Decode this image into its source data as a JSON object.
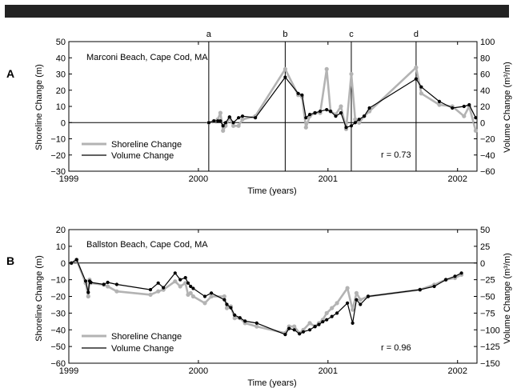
{
  "chart_data": [
    {
      "panel": "A",
      "type": "line",
      "annotation": "Marconi Beach, Cape Cod, MA",
      "xlabel": "Time (years)",
      "ylabel": "Shoreline Change (m)",
      "y2label": "Volume Change (m³/m)",
      "xlim": [
        1999,
        2002.15
      ],
      "ylim": [
        -30,
        50
      ],
      "y2lim": [
        -60,
        100
      ],
      "xticks": [
        "1999",
        "2000",
        "2001",
        "2002"
      ],
      "yticks": [
        "50",
        "40",
        "30",
        "20",
        "10",
        "0",
        "−10",
        "−20",
        "−30"
      ],
      "y2ticks": [
        "100",
        "80",
        "60",
        "40",
        "20",
        "0",
        "−20",
        "−40",
        "−60"
      ],
      "r_text": "r = 0.73",
      "event_lines": [
        {
          "label": "a",
          "x": 2000.08
        },
        {
          "label": "b",
          "x": 2000.67
        },
        {
          "label": "c",
          "x": 2001.18
        },
        {
          "label": "d",
          "x": 2001.68
        }
      ],
      "legend": {
        "placement": "bottom-left",
        "entries": [
          "Shoreline Change",
          "Volume Change"
        ]
      },
      "colors": {
        "shoreline": "#b3b3b3",
        "volume": "#000000"
      },
      "series": [
        {
          "name": "Shoreline Change",
          "axis": "left",
          "x": [
            2000.08,
            2000.12,
            2000.15,
            2000.17,
            2000.19,
            2000.21,
            2000.24,
            2000.27,
            2000.31,
            2000.34,
            2000.44,
            2000.67,
            2000.77,
            2000.8,
            2000.83,
            2000.86,
            2000.9,
            2000.94,
            2000.99,
            2001.02,
            2001.06,
            2001.1,
            2001.14,
            2001.18,
            2001.21,
            2001.24,
            2001.28,
            2001.32,
            2001.68,
            2001.72,
            2001.86,
            2001.96,
            2002.05,
            2002.09,
            2002.14
          ],
          "y": [
            0,
            1,
            2,
            6,
            -5,
            -2,
            3,
            -2,
            -2,
            2,
            4,
            33,
            17,
            16,
            -3,
            4,
            6,
            6,
            33,
            7,
            5,
            10,
            -4,
            30,
            2,
            0,
            4,
            7,
            34,
            18,
            11,
            10,
            4,
            10,
            -5
          ]
        },
        {
          "name": "Volume Change",
          "axis": "right",
          "x": [
            2000.08,
            2000.12,
            2000.15,
            2000.17,
            2000.19,
            2000.21,
            2000.24,
            2000.27,
            2000.31,
            2000.34,
            2000.44,
            2000.67,
            2000.77,
            2000.8,
            2000.83,
            2000.86,
            2000.9,
            2000.94,
            2000.99,
            2001.02,
            2001.06,
            2001.1,
            2001.14,
            2001.18,
            2001.21,
            2001.24,
            2001.28,
            2001.32,
            2001.68,
            2001.72,
            2001.86,
            2001.96,
            2002.05,
            2002.09,
            2002.14
          ],
          "y": [
            0,
            2,
            2,
            2,
            -4,
            0,
            7,
            0,
            6,
            8,
            6,
            56,
            36,
            34,
            6,
            10,
            12,
            14,
            16,
            14,
            8,
            12,
            -6,
            -4,
            0,
            4,
            8,
            18,
            54,
            44,
            26,
            18,
            20,
            22,
            6
          ]
        }
      ]
    },
    {
      "panel": "B",
      "type": "line",
      "annotation": "Ballston Beach, Cape Cod, MA",
      "xlabel": "Time (years)",
      "ylabel": "Shoreline Change (m)",
      "y2label": "Volume Change (m³/m)",
      "xlim": [
        1999,
        2002.15
      ],
      "ylim": [
        -60,
        20
      ],
      "y2lim": [
        -150,
        50
      ],
      "xticks": [
        "1999",
        "2000",
        "2001",
        "2002"
      ],
      "yticks": [
        "20",
        "10",
        "0",
        "−10",
        "−20",
        "−30",
        "−40",
        "−50",
        "−60"
      ],
      "y2ticks": [
        "50",
        "25",
        "0",
        "−25",
        "−50",
        "−75",
        "−100",
        "−125",
        "−150"
      ],
      "r_text": "r = 0.96",
      "legend": {
        "placement": "bottom-left",
        "entries": [
          "Shoreline Change",
          "Volume Change"
        ]
      },
      "colors": {
        "shoreline": "#b3b3b3",
        "volume": "#000000"
      },
      "series": [
        {
          "name": "Shoreline Change",
          "axis": "left",
          "x": [
            1999.02,
            1999.06,
            1999.13,
            1999.15,
            1999.16,
            1999.17,
            1999.27,
            1999.3,
            1999.37,
            1999.63,
            1999.69,
            1999.73,
            1999.82,
            1999.86,
            1999.9,
            1999.92,
            1999.94,
            1999.96,
            2000.05,
            2000.1,
            2000.2,
            2000.22,
            2000.25,
            2000.28,
            2000.32,
            2000.36,
            2000.45,
            2000.67,
            2000.7,
            2000.74,
            2000.78,
            2000.81,
            2000.86,
            2000.9,
            2000.93,
            2000.96,
            2000.99,
            2001.03,
            2001.07,
            2001.15,
            2001.19,
            2001.22,
            2001.25,
            2001.31,
            2001.71,
            2001.82,
            2001.91,
            2001.98,
            2002.03
          ],
          "y": [
            0,
            2,
            -12,
            -20,
            -10,
            -12,
            -13,
            -14,
            -17,
            -19,
            -17,
            -16,
            -11,
            -14,
            -12,
            -19,
            -18,
            -20,
            -24,
            -20,
            -20,
            -27,
            -26,
            -33,
            -33,
            -36,
            -38,
            -42,
            -38,
            -38,
            -42,
            -40,
            -36,
            -38,
            -36,
            -34,
            -30,
            -27,
            -24,
            -15,
            -28,
            -18,
            -22,
            -20,
            -16,
            -13,
            -10,
            -9,
            -7
          ]
        },
        {
          "name": "Volume Change",
          "axis": "right",
          "x": [
            1999.02,
            1999.06,
            1999.13,
            1999.15,
            1999.16,
            1999.17,
            1999.27,
            1999.3,
            1999.37,
            1999.63,
            1999.69,
            1999.73,
            1999.82,
            1999.86,
            1999.9,
            1999.92,
            1999.94,
            1999.96,
            2000.05,
            2000.1,
            2000.2,
            2000.22,
            2000.25,
            2000.28,
            2000.32,
            2000.36,
            2000.45,
            2000.67,
            2000.7,
            2000.74,
            2000.78,
            2000.81,
            2000.86,
            2000.9,
            2000.93,
            2000.96,
            2000.99,
            2001.03,
            2001.07,
            2001.15,
            2001.19,
            2001.22,
            2001.25,
            2001.31,
            2001.71,
            2001.82,
            2001.91,
            2001.98,
            2002.03
          ],
          "y": [
            0,
            5,
            -27,
            -44,
            -27,
            -29,
            -32,
            -29,
            -32,
            -40,
            -30,
            -37,
            -15,
            -25,
            -22,
            -30,
            -35,
            -38,
            -50,
            -45,
            -55,
            -62,
            -67,
            -78,
            -82,
            -87,
            -90,
            -107,
            -98,
            -100,
            -106,
            -103,
            -100,
            -95,
            -92,
            -88,
            -85,
            -80,
            -75,
            -60,
            -90,
            -55,
            -62,
            -50,
            -40,
            -35,
            -25,
            -20,
            -15
          ]
        }
      ]
    }
  ],
  "panel_labels": [
    "A",
    "B"
  ],
  "x_tick_values": [
    1999,
    2000,
    2001,
    2002
  ]
}
